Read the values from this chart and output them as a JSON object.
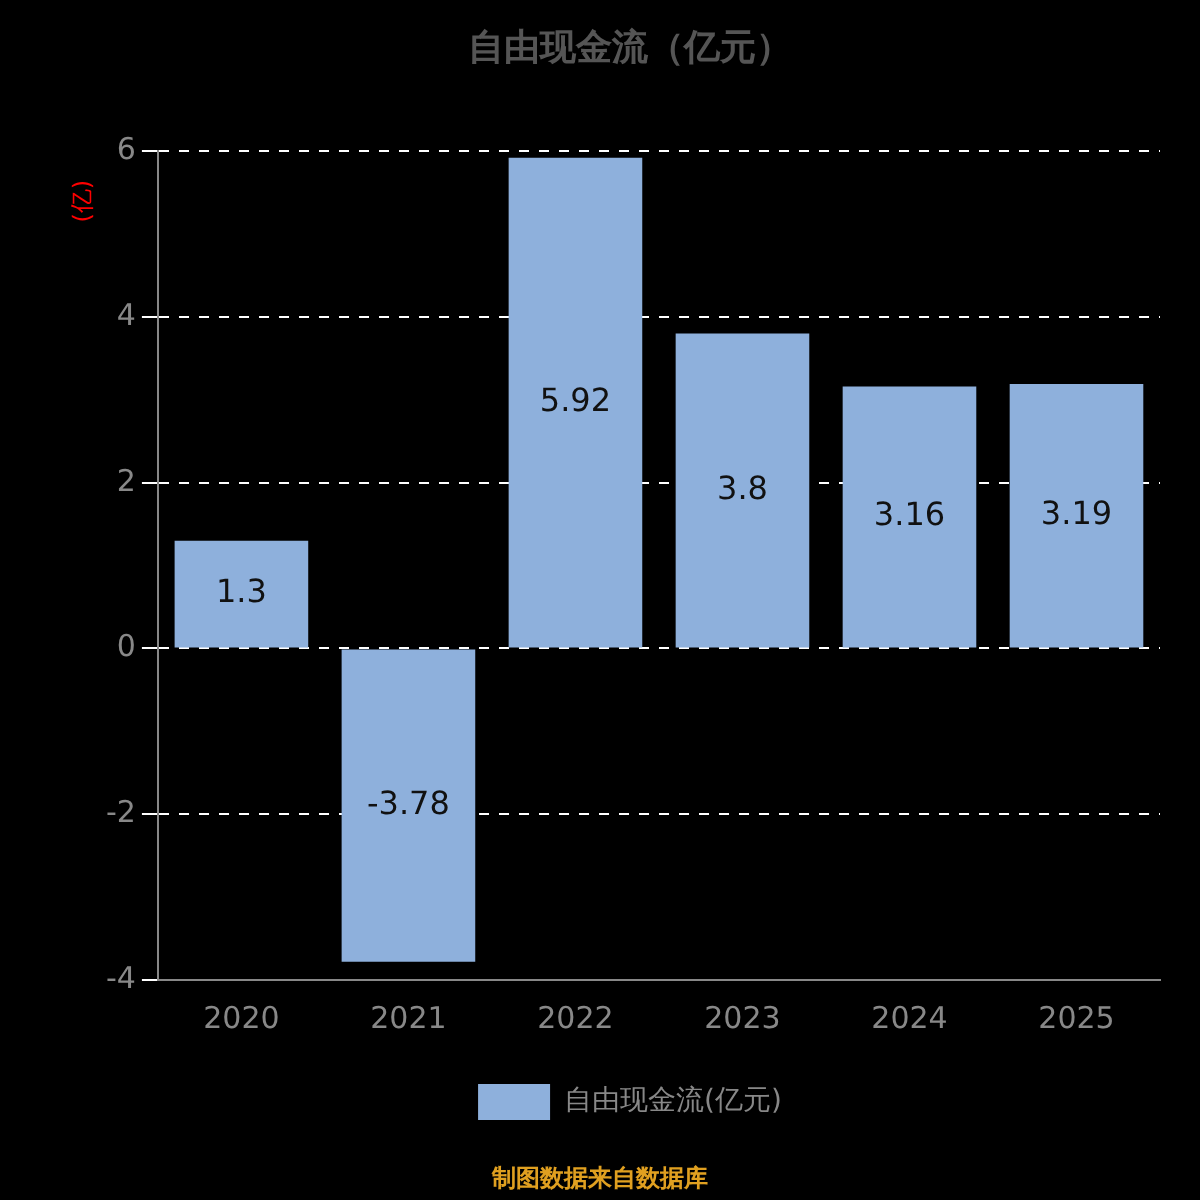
{
  "chart_data": {
    "type": "bar",
    "title": "自由现金流（亿元）",
    "ylabel": "(亿)",
    "categories": [
      "2020",
      "2021",
      "2022",
      "2023",
      "2024",
      "2025"
    ],
    "series": [
      {
        "name": "自由现金流(亿元)",
        "color": "#8eb0dc",
        "values": [
          1.3,
          -3.78,
          5.92,
          3.8,
          3.16,
          3.19
        ]
      }
    ],
    "ylim": [
      -4,
      6
    ],
    "yticks": [
      -4,
      -2,
      0,
      2,
      4,
      6
    ],
    "grid": "y",
    "legend": "bottom",
    "data_labels": true,
    "annotations": [
      "制图数据来自数据库"
    ]
  }
}
